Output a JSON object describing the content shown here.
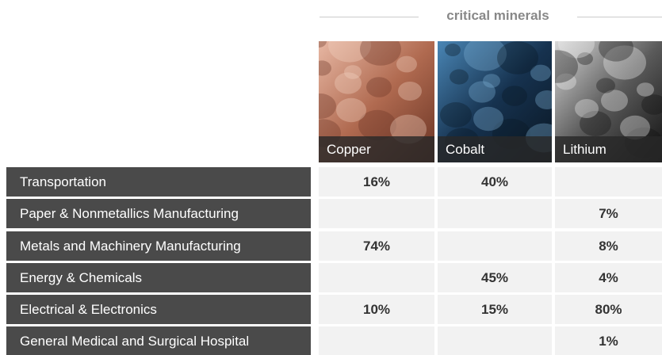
{
  "header": {
    "title": "critical minerals"
  },
  "table": {
    "columns": [
      "Copper",
      "Cobalt",
      "Lithium"
    ],
    "rows": [
      {
        "label": "Transportation",
        "values": [
          "16%",
          "40%",
          null
        ]
      },
      {
        "label": "Paper & Nonmetallics Manufacturing",
        "values": [
          null,
          null,
          "7%"
        ]
      },
      {
        "label": "Metals and Machinery Manufacturing",
        "values": [
          "74%",
          null,
          "8%"
        ]
      },
      {
        "label": "Energy & Chemicals",
        "values": [
          null,
          "45%",
          "4%"
        ]
      },
      {
        "label": "Electrical & Electronics",
        "values": [
          "10%",
          "15%",
          "80%"
        ]
      },
      {
        "label": "General Medical and Surgical Hospital",
        "values": [
          null,
          null,
          "1%"
        ]
      }
    ]
  }
}
